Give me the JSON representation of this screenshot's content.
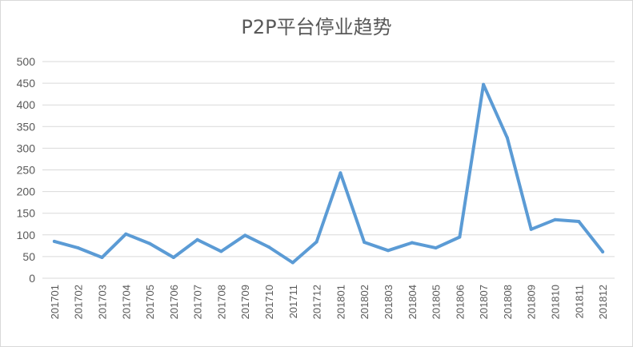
{
  "chart_data": {
    "type": "line",
    "title": "P2P平台停业趋势",
    "xlabel": "",
    "ylabel": "",
    "ylim": [
      0,
      500
    ],
    "yticks": [
      0,
      50,
      100,
      150,
      200,
      250,
      300,
      350,
      400,
      450,
      500
    ],
    "grid": true,
    "legend": "none",
    "categories": [
      "201701",
      "201702",
      "201703",
      "201704",
      "201705",
      "201706",
      "201707",
      "201708",
      "201709",
      "201710",
      "201711",
      "201712",
      "201801",
      "201802",
      "201803",
      "201804",
      "201805",
      "201806",
      "201807",
      "201808",
      "201809",
      "201810",
      "201811",
      "201812"
    ],
    "series": [
      {
        "values": [
          85,
          70,
          48,
          102,
          80,
          48,
          89,
          62,
          99,
          72,
          36,
          84,
          243,
          83,
          64,
          82,
          70,
          95,
          447,
          324,
          113,
          135,
          131,
          61
        ],
        "color": "#5b9bd5"
      }
    ]
  },
  "colors": {
    "gridline": "#d9d9d9",
    "axis": "#d9d9d9",
    "text": "#595959",
    "line": "#5b9bd5"
  }
}
